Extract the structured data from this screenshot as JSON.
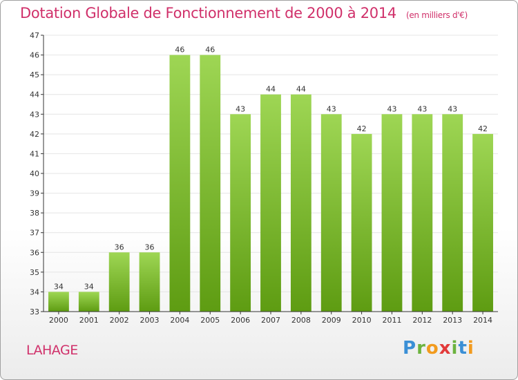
{
  "title": "Dotation Globale de Fonctionnement de 2000 à 2014",
  "subtitle": "(en milliers d'€)",
  "place": "LAHAGE",
  "brand": {
    "letters": [
      "P",
      "r",
      "o",
      "x",
      "i",
      "t",
      "i"
    ],
    "colors": [
      "#3a8fd6",
      "#6cb33f",
      "#f29b1e",
      "#e23a3a",
      "#6cb33f",
      "#3a8fd6",
      "#f29b1e"
    ]
  },
  "colors": {
    "title": "#d0306a",
    "bar_top": "#9ed654",
    "bar_bottom": "#5e9c12",
    "grid": "#e4e4e4",
    "axis": "#333333"
  },
  "chart_data": {
    "type": "bar",
    "title": "Dotation Globale de Fonctionnement de 2000 à 2014",
    "subtitle": "(en milliers d'€)",
    "categories": [
      "2000",
      "2001",
      "2002",
      "2003",
      "2004",
      "2005",
      "2006",
      "2007",
      "2008",
      "2009",
      "2010",
      "2011",
      "2012",
      "2013",
      "2014"
    ],
    "values": [
      34,
      34,
      36,
      36,
      46,
      46,
      43,
      44,
      44,
      43,
      42,
      43,
      43,
      43,
      42
    ],
    "ylim": [
      33,
      47
    ],
    "yticks": [
      33,
      34,
      35,
      36,
      37,
      38,
      39,
      40,
      41,
      42,
      43,
      44,
      45,
      46,
      47
    ],
    "grid": true,
    "data_labels": true
  }
}
